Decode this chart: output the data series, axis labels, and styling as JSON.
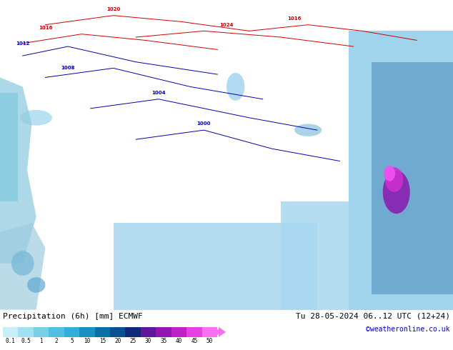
{
  "title_left": "Precipitation (6h) [mm] ECMWF",
  "title_right": "Tu 28-05-2024 06..12 UTC (12+24)",
  "credit": "©weatheronline.co.uk",
  "colorbar_levels": [
    0.1,
    0.5,
    1,
    2,
    5,
    10,
    15,
    20,
    25,
    30,
    35,
    40,
    45,
    50
  ],
  "colorbar_colors": [
    "#c8eef8",
    "#a0e0f0",
    "#78d0e8",
    "#50c0e0",
    "#30b0d8",
    "#1890c0",
    "#0870a8",
    "#085090",
    "#102878",
    "#601898",
    "#9018b0",
    "#c020c8",
    "#e840e0",
    "#f870f0"
  ],
  "map_bg_color": "#c8e8b0",
  "fig_bg_color": "#ffffff",
  "credit_color": "#0000cc",
  "title_color": "#000000",
  "land_color": "#c8e8b0",
  "ocean_color": "#a8d8f0",
  "precip_light_color": "#90c8e8",
  "precip_med_color": "#4090c0",
  "precip_heavy_color": "#8820a8",
  "precip_extreme_color": "#e840e8",
  "fig_width": 6.34,
  "fig_height": 4.9,
  "dpi": 100
}
